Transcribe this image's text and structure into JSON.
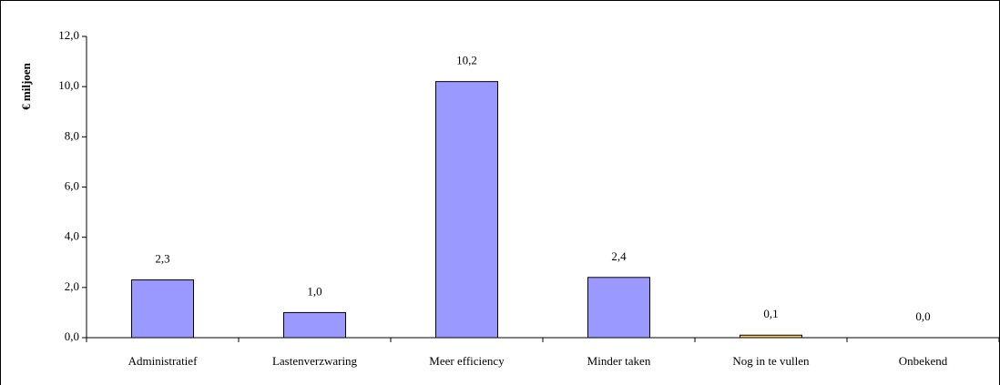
{
  "chart_data": {
    "type": "bar",
    "y_label": "€ miljoen",
    "categories": [
      "Administratief",
      "Lastenverzwaring",
      "Meer efficiency",
      "Minder taken",
      "Nog in te vullen",
      "Onbekend"
    ],
    "values": [
      2.3,
      1.0,
      10.2,
      2.4,
      0.1,
      0.0
    ],
    "value_labels": [
      "2,3",
      "1,0",
      "10,2",
      "2,4",
      "0,1",
      "0,0"
    ],
    "colors": [
      "#9999ff",
      "#9999ff",
      "#9999ff",
      "#9999ff",
      "#ffcc66",
      "#9999ff"
    ],
    "ylim": [
      0,
      12
    ],
    "yticks": [
      {
        "value": 0,
        "label": "0,0"
      },
      {
        "value": 2,
        "label": "2,0"
      },
      {
        "value": 4,
        "label": "4,0"
      },
      {
        "value": 6,
        "label": "6,0"
      },
      {
        "value": 8,
        "label": "8,0"
      },
      {
        "value": 10,
        "label": "10,0"
      },
      {
        "value": 12,
        "label": "12,0"
      }
    ],
    "grid": false
  }
}
